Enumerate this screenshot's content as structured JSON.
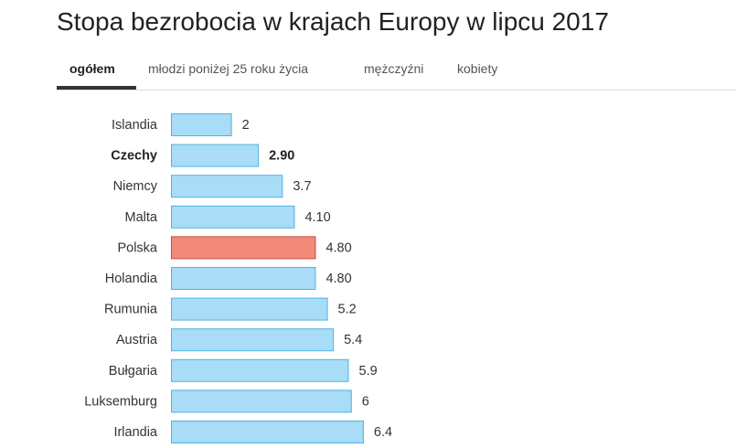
{
  "tabs": [
    {
      "label": "ogółem",
      "active": true
    },
    {
      "label": "młodzi poniżej 25 roku życia",
      "active": false
    },
    {
      "label": "mężczyźni",
      "active": false
    },
    {
      "label": "kobiety",
      "active": false
    }
  ],
  "colors": {
    "bar_fill": "#a9dcf6",
    "bar_stroke": "#4fb3e4",
    "highlight_fill": "#f28a7c",
    "highlight_stroke": "#c9493c"
  },
  "chart_data": {
    "type": "bar",
    "orientation": "horizontal",
    "title": "Stopa bezrobocia w krajach Europy w lipcu 2017",
    "categories": [
      "Islandia",
      "Czechy",
      "Niemcy",
      "Malta",
      "Polska",
      "Holandia",
      "Rumunia",
      "Austria",
      "Bułgaria",
      "Luksemburg",
      "Irlandia"
    ],
    "values": [
      2,
      2.9,
      3.7,
      4.1,
      4.8,
      4.8,
      5.2,
      5.4,
      5.9,
      6,
      6.4
    ],
    "value_labels": [
      "2",
      "2.90",
      "3.7",
      "4.10",
      "4.80",
      "4.80",
      "5.2",
      "5.4",
      "5.9",
      "6",
      "6.4"
    ],
    "highlight": "Polska",
    "bold": [
      "Czechy"
    ],
    "xlabel": "",
    "ylabel": "",
    "grid": false
  }
}
